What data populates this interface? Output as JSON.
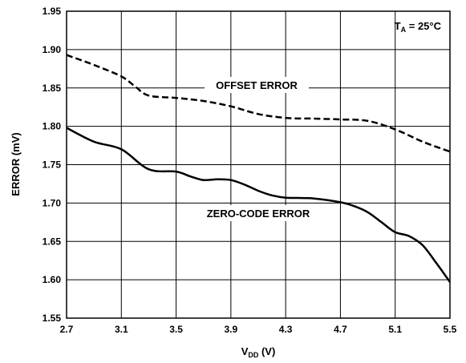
{
  "chart_data": {
    "type": "line",
    "xlabel_main": "V",
    "xlabel_sub": "DD",
    "xlabel_unit": " (V)",
    "ylabel": "ERROR (mV)",
    "xlim": [
      2.7,
      5.5
    ],
    "ylim": [
      1.55,
      1.95
    ],
    "x_ticks": [
      "2.7",
      "3.1",
      "3.5",
      "3.9",
      "4.3",
      "4.7",
      "5.1",
      "5.5"
    ],
    "y_ticks": [
      "1.95",
      "1.90",
      "1.85",
      "1.80",
      "1.75",
      "1.70",
      "1.65",
      "1.60",
      "1.55"
    ],
    "grid": true,
    "condition": {
      "main": "T",
      "sub": "A",
      "rest": " = 25°C"
    },
    "series": [
      {
        "name": "OFFSET ERROR",
        "style": "dashed",
        "x": [
          2.7,
          2.9,
          3.1,
          3.2,
          3.3,
          3.5,
          3.7,
          3.9,
          4.1,
          4.3,
          4.5,
          4.7,
          4.9,
          5.1,
          5.3,
          5.5
        ],
        "y": [
          1.893,
          1.88,
          1.865,
          1.852,
          1.84,
          1.837,
          1.833,
          1.826,
          1.816,
          1.811,
          1.81,
          1.809,
          1.807,
          1.796,
          1.78,
          1.767
        ]
      },
      {
        "name": "ZERO-CODE ERROR",
        "style": "solid",
        "x": [
          2.7,
          2.9,
          3.1,
          3.3,
          3.5,
          3.6,
          3.7,
          3.8,
          3.9,
          4.0,
          4.1,
          4.2,
          4.3,
          4.5,
          4.7,
          4.8,
          4.9,
          5.0,
          5.1,
          5.2,
          5.3,
          5.4,
          5.5
        ],
        "y": [
          1.798,
          1.78,
          1.77,
          1.744,
          1.741,
          1.735,
          1.73,
          1.731,
          1.73,
          1.724,
          1.716,
          1.71,
          1.707,
          1.706,
          1.701,
          1.696,
          1.688,
          1.675,
          1.662,
          1.657,
          1.645,
          1.622,
          1.597
        ]
      }
    ]
  }
}
